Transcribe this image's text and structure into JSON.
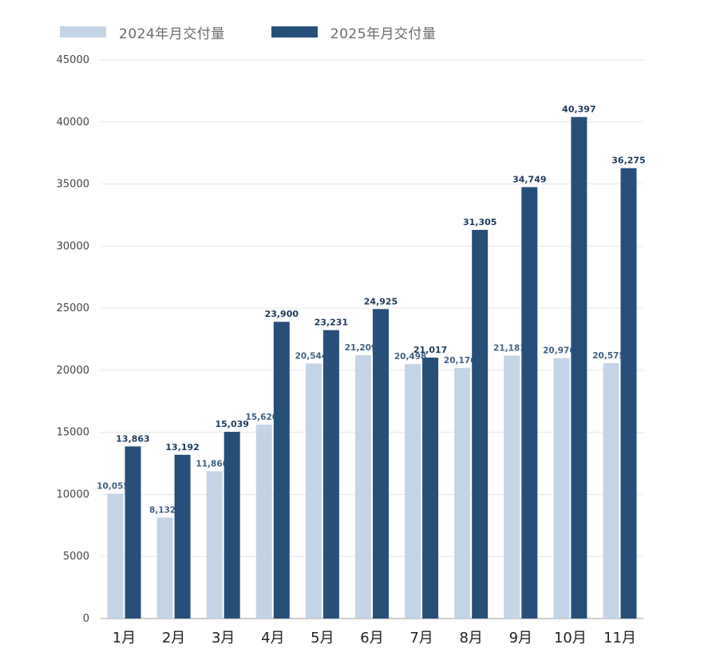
{
  "colors": {
    "series_2024": "#c3d4e6",
    "series_2025": "#26507a",
    "grid": "#e6e6e6",
    "axis": "#9a9a9a"
  },
  "chart_data": {
    "type": "bar",
    "title": "",
    "xlabel": "",
    "ylabel": "",
    "categories": [
      "1月",
      "2月",
      "3月",
      "4月",
      "5月",
      "6月",
      "7月",
      "8月",
      "9月",
      "10月",
      "11月"
    ],
    "series": [
      {
        "name": "2024年月交付量",
        "values": [
          10055,
          8132,
          11866,
          15620,
          20544,
          21209,
          20498,
          20176,
          21181,
          20976,
          20575
        ],
        "labels": [
          "10,055",
          "8,132",
          "11,866",
          "15,620",
          "20,544",
          "21,209",
          "20,498",
          "20,176",
          "21,181",
          "20,976",
          "20,575"
        ]
      },
      {
        "name": "2025年月交付量",
        "values": [
          13863,
          13192,
          15039,
          23900,
          23231,
          24925,
          21017,
          31305,
          34749,
          40397,
          36275
        ],
        "labels": [
          "13,863",
          "13,192",
          "15,039",
          "23,900",
          "23,231",
          "24,925",
          "21,017",
          "31,305",
          "34,749",
          "40,397",
          "36,275"
        ]
      }
    ],
    "ylim": [
      0,
      45000
    ],
    "yticks": [
      "0",
      "5000",
      "10000",
      "15000",
      "20000",
      "25000",
      "30000",
      "35000",
      "40000",
      "45000"
    ],
    "grid": true,
    "legend_position": "top-left"
  }
}
